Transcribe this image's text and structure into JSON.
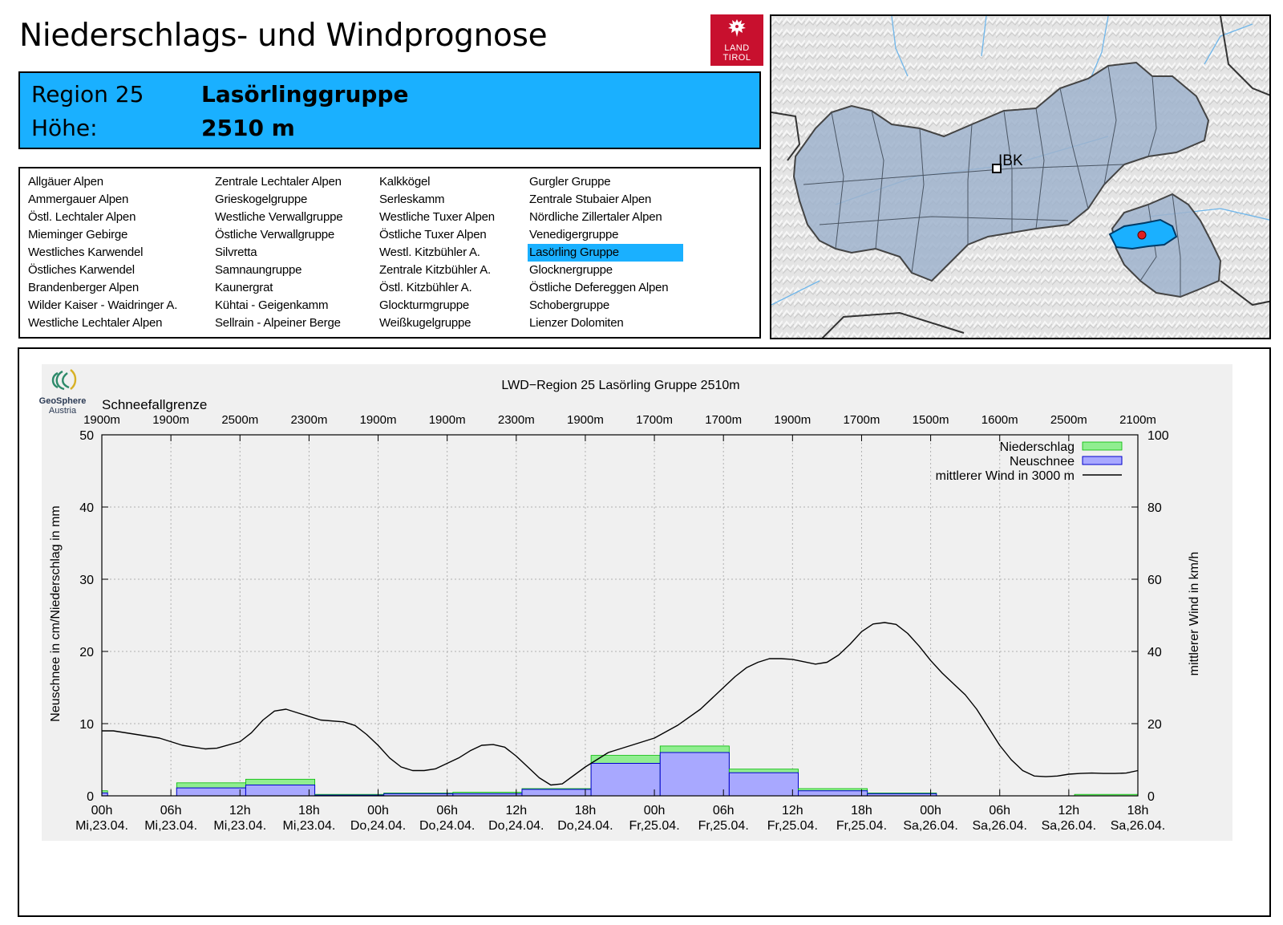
{
  "header": {
    "title": "Niederschlags- und Windprognose",
    "logo_line1": "LAND",
    "logo_line2": "TIROL",
    "brand_color": "#c8102e"
  },
  "region": {
    "label": "Region 25",
    "name": "Lasörlinggruppe",
    "height_label": "Höhe:",
    "height_value": "2510 m",
    "highlight_color": "#1ab0ff"
  },
  "region_list": {
    "columns": [
      [
        "Allgäuer Alpen",
        "Ammergauer Alpen",
        "Östl. Lechtaler Alpen",
        "Mieminger Gebirge",
        "Westliches Karwendel",
        "Östliches Karwendel",
        "Brandenberger Alpen",
        "Wilder Kaiser - Waidringer A.",
        "Westliche Lechtaler Alpen"
      ],
      [
        "Zentrale Lechtaler Alpen",
        "Grieskogelgruppe",
        "Westliche Verwallgruppe",
        "Östliche Verwallgruppe",
        "Silvretta",
        "Samnaungruppe",
        "Kaunergrat",
        "Kühtai - Geigenkamm",
        "Sellrain - Alpeiner Berge"
      ],
      [
        "Kalkkögel",
        "Serleskamm",
        "Westliche Tuxer Alpen",
        "Östliche Tuxer Alpen",
        "Westl. Kitzbühler A.",
        "Zentrale Kitzbühler A.",
        "Östl. Kitzbühler A.",
        "Glockturmgruppe",
        "Weißkugelgruppe"
      ],
      [
        "Gurgler Gruppe",
        "Zentrale Stubaier Alpen",
        "Nördliche Zillertaler Alpen",
        "Venedigergruppe",
        "Lasörling Gruppe",
        "Glocknergruppe",
        "Östliche Defereggen Alpen",
        "Schobergruppe",
        "Lienzer Dolomiten"
      ]
    ],
    "active": "Lasörling Gruppe"
  },
  "map": {
    "city_label": "IBK"
  },
  "chart_data": {
    "type": "bar+line",
    "title": "LWD−Region 25 Lasörling Gruppe 2510m",
    "brand_line1": "GeoSphere",
    "brand_line2": "Austria",
    "snowline_title": "Schneefallgrenze",
    "snowline": [
      "1900m",
      "1900m",
      "2500m",
      "2300m",
      "1900m",
      "1900m",
      "2300m",
      "1900m",
      "1700m",
      "1700m",
      "1900m",
      "1700m",
      "1500m",
      "1600m",
      "2500m",
      "2100m"
    ],
    "x_ticks_hour": [
      "00h",
      "06h",
      "12h",
      "18h",
      "00h",
      "06h",
      "12h",
      "18h",
      "00h",
      "06h",
      "12h",
      "18h",
      "00h",
      "06h",
      "12h",
      "18h"
    ],
    "x_ticks_date": [
      "Mi,23.04.",
      "Mi,23.04.",
      "Mi,23.04.",
      "Mi,23.04.",
      "Do,24.04.",
      "Do,24.04.",
      "Do,24.04.",
      "Do,24.04.",
      "Fr,25.04.",
      "Fr,25.04.",
      "Fr,25.04.",
      "Fr,25.04.",
      "Sa,26.04.",
      "Sa,26.04.",
      "Sa,26.04.",
      "Sa,26.04."
    ],
    "ylabel": "Neuschnee in cm/Niederschlag in mm",
    "y2label": "mittlerer Wind in km/h",
    "ylim": [
      0,
      50
    ],
    "y2lim": [
      0,
      100
    ],
    "y_ticks": [
      "0",
      "10",
      "20",
      "30",
      "40",
      "50"
    ],
    "y2_ticks": [
      "0",
      "20",
      "40",
      "60",
      "80",
      "100"
    ],
    "legend": [
      "Niederschlag",
      "Neuschnee",
      "mittlerer Wind in 3000 m"
    ],
    "colors": {
      "niederschlag": "#90ee90",
      "neuschnee": "#a8a8ff",
      "neuschnee_edge": "#0000cc",
      "niederschlag_edge": "#00bb00",
      "wind": "#000000",
      "bg": "#f0f0f0"
    },
    "bars": [
      {
        "start_h": 0,
        "end_h": 0.5,
        "niederschlag": 0.7,
        "neuschnee": 0.4
      },
      {
        "start_h": 6.5,
        "end_h": 12.5,
        "niederschlag": 1.8,
        "neuschnee": 1.1
      },
      {
        "start_h": 12.5,
        "end_h": 18.5,
        "niederschlag": 2.3,
        "neuschnee": 1.5
      },
      {
        "start_h": 18.5,
        "end_h": 24.5,
        "niederschlag": 0.2,
        "neuschnee": 0.1
      },
      {
        "start_h": 24.5,
        "end_h": 30.5,
        "niederschlag": 0.4,
        "neuschnee": 0.3
      },
      {
        "start_h": 30.5,
        "end_h": 36.5,
        "niederschlag": 0.5,
        "neuschnee": 0.3
      },
      {
        "start_h": 36.5,
        "end_h": 42.5,
        "niederschlag": 1.0,
        "neuschnee": 0.9
      },
      {
        "start_h": 42.5,
        "end_h": 48.5,
        "niederschlag": 5.6,
        "neuschnee": 4.5
      },
      {
        "start_h": 48.5,
        "end_h": 54.5,
        "niederschlag": 6.9,
        "neuschnee": 6.0
      },
      {
        "start_h": 54.5,
        "end_h": 60.5,
        "niederschlag": 3.7,
        "neuschnee": 3.2
      },
      {
        "start_h": 60.5,
        "end_h": 66.5,
        "niederschlag": 1.0,
        "neuschnee": 0.7
      },
      {
        "start_h": 66.5,
        "end_h": 72.5,
        "niederschlag": 0.4,
        "neuschnee": 0.3
      },
      {
        "start_h": 84.5,
        "end_h": 90,
        "niederschlag": 0.2,
        "neuschnee": 0.0
      }
    ],
    "wind_hours": [
      0,
      1,
      3,
      5,
      7,
      8,
      9,
      10,
      12,
      13,
      14,
      15,
      16,
      17,
      19,
      21,
      22,
      23,
      24,
      25,
      26,
      27,
      28,
      29,
      31,
      32,
      33,
      34,
      35,
      36,
      37,
      38,
      39,
      40,
      42,
      44,
      46,
      48,
      50,
      52,
      54,
      55,
      56,
      57,
      58,
      59,
      60,
      62,
      63,
      64,
      65,
      66,
      67,
      68,
      69,
      70,
      71,
      72,
      73,
      74,
      75,
      76,
      77,
      78,
      79,
      80,
      81,
      82,
      83,
      84,
      85,
      86,
      87,
      88,
      89,
      90
    ],
    "wind_kmh": [
      18,
      18,
      17,
      16,
      14,
      13.5,
      13,
      13.2,
      15,
      17.5,
      21,
      23.5,
      24,
      23,
      21,
      20.5,
      19.5,
      17,
      14,
      10.5,
      8,
      7,
      7,
      7.5,
      10.5,
      12.5,
      14,
      14.2,
      13.5,
      11,
      8,
      5,
      3,
      3.3,
      8,
      12,
      14,
      16,
      19.5,
      24,
      30,
      33,
      35.5,
      37,
      38,
      38,
      37.8,
      36.5,
      37,
      39,
      42,
      45.5,
      47.6,
      48,
      47.5,
      45,
      41.5,
      37.5,
      34,
      31,
      28,
      24,
      19,
      14,
      10,
      7,
      5.5,
      5.3,
      5.5,
      6,
      6.2,
      6.3,
      6.2,
      6.2,
      6.3,
      7
    ]
  }
}
